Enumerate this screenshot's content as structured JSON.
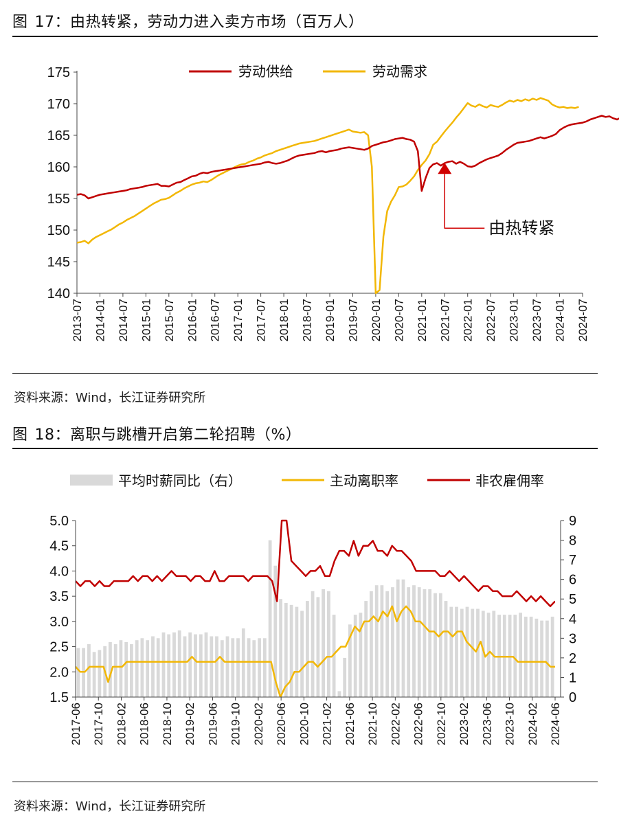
{
  "fig17": {
    "label": "图",
    "number": "17：",
    "title": "由热转紧，劳动力进入卖方市场（百万人）",
    "source": "资料来源：Wind，长江证券研究所",
    "legend": [
      "劳动供给",
      "劳动需求"
    ],
    "annotation": "由热转紧",
    "colors": {
      "supply": "#c00000",
      "demand": "#f2b705",
      "annotation": "#d00000"
    }
  },
  "fig18": {
    "label": "图",
    "number": "18：",
    "title": "离职与跳槽开启第二轮招聘（%）",
    "source": "资料来源：Wind，长江证券研究所",
    "legend": [
      "平均时薪同比（右）",
      "主动离职率",
      "非农雇佣率"
    ],
    "colors": {
      "wage": "#d9d9d9",
      "quits": "#f2b705",
      "hires": "#c00000"
    }
  },
  "chart_data": [
    {
      "type": "line",
      "title": "由热转紧，劳动力进入卖方市场（百万人）",
      "ylim": [
        140,
        175
      ],
      "yticks": [
        140,
        145,
        150,
        155,
        160,
        165,
        170,
        175
      ],
      "xticks": [
        "2013-07",
        "2014-01",
        "2014-07",
        "2015-01",
        "2015-07",
        "2016-01",
        "2016-07",
        "2017-01",
        "2017-07",
        "2018-01",
        "2018-07",
        "2019-01",
        "2019-07",
        "2020-01",
        "2020-07",
        "2021-01",
        "2021-07",
        "2022-01",
        "2022-07",
        "2023-01",
        "2023-07",
        "2024-01",
        "2024-07"
      ],
      "x_start": "2013-07",
      "series": [
        {
          "name": "劳动供给",
          "values": [
            155.6,
            155.7,
            155.5,
            155.0,
            155.2,
            155.4,
            155.6,
            155.7,
            155.8,
            155.9,
            156.0,
            156.1,
            156.2,
            156.3,
            156.5,
            156.6,
            156.7,
            156.8,
            157.0,
            157.1,
            157.2,
            157.3,
            157.0,
            157.0,
            156.9,
            157.2,
            157.5,
            157.6,
            157.9,
            158.2,
            158.5,
            158.6,
            158.9,
            159.1,
            159.0,
            159.2,
            159.3,
            159.4,
            159.5,
            159.6,
            159.7,
            159.8,
            159.9,
            160.0,
            160.1,
            160.2,
            160.3,
            160.4,
            160.5,
            160.7,
            160.8,
            160.6,
            160.5,
            160.6,
            160.8,
            161.0,
            161.3,
            161.6,
            161.8,
            161.9,
            162.0,
            162.1,
            162.2,
            162.4,
            162.5,
            162.3,
            162.5,
            162.6,
            162.7,
            162.9,
            163.0,
            163.1,
            163.0,
            162.9,
            162.8,
            162.7,
            162.9,
            163.3,
            163.5,
            163.7,
            163.9,
            164.0,
            164.2,
            164.4,
            164.5,
            164.6,
            164.4,
            164.3,
            164.0,
            162.5,
            156.2,
            158.2,
            159.8,
            160.4,
            160.6,
            160.2,
            160.6,
            160.8,
            160.9,
            160.5,
            160.8,
            160.5,
            160.1,
            160.0,
            160.2,
            160.6,
            160.9,
            161.2,
            161.4,
            161.6,
            161.8,
            162.2,
            162.7,
            163.1,
            163.5,
            163.8,
            163.9,
            164.0,
            164.1,
            164.3,
            164.5,
            164.7,
            164.5,
            164.7,
            164.9,
            165.2,
            165.8,
            166.2,
            166.5,
            166.7,
            166.8,
            166.9,
            167.0,
            167.2,
            167.5,
            167.7,
            167.9,
            168.1,
            167.9,
            168.0,
            167.7,
            167.5,
            167.8,
            167.9,
            168.1,
            168.0,
            168.2,
            168.4
          ]
        },
        {
          "name": "劳动需求",
          "values": [
            148.0,
            148.1,
            148.3,
            147.9,
            148.5,
            148.9,
            149.2,
            149.5,
            149.8,
            150.1,
            150.5,
            150.9,
            151.2,
            151.6,
            151.9,
            152.2,
            152.6,
            153.0,
            153.4,
            153.8,
            154.2,
            154.5,
            154.8,
            154.9,
            155.1,
            155.5,
            155.9,
            156.2,
            156.6,
            156.9,
            157.2,
            157.4,
            157.5,
            157.7,
            157.6,
            157.9,
            158.3,
            158.7,
            159.0,
            159.3,
            159.6,
            159.9,
            160.2,
            160.4,
            160.5,
            160.8,
            161.0,
            161.3,
            161.5,
            161.8,
            162.0,
            162.2,
            162.5,
            162.7,
            162.9,
            163.1,
            163.3,
            163.5,
            163.7,
            163.8,
            163.9,
            164.0,
            164.1,
            164.3,
            164.5,
            164.7,
            164.9,
            165.1,
            165.3,
            165.5,
            165.7,
            165.9,
            165.6,
            165.5,
            165.4,
            165.5,
            165.0,
            160.0,
            140.0,
            140.5,
            149.0,
            153.0,
            154.5,
            155.5,
            156.8,
            156.9,
            157.2,
            157.8,
            158.5,
            159.5,
            160.3,
            161.0,
            162.0,
            163.5,
            164.0,
            164.8,
            165.6,
            166.3,
            167.0,
            167.8,
            168.5,
            169.3,
            170.1,
            169.7,
            169.5,
            169.9,
            169.6,
            169.4,
            169.8,
            169.6,
            169.5,
            169.8,
            170.2,
            170.5,
            170.3,
            170.6,
            170.4,
            170.7,
            170.5,
            170.8,
            170.6,
            170.9,
            170.7,
            170.5,
            169.9,
            169.6,
            169.4,
            169.5,
            169.3,
            169.4,
            169.3,
            169.5
          ]
        }
      ],
      "annotations": [
        {
          "text": "由热转紧",
          "x": "2021-07",
          "y": 161.5
        }
      ]
    },
    {
      "type": "bar+line",
      "title": "离职与跳槽开启第二轮招聘（%）",
      "ylim_left": [
        1.5,
        5.0
      ],
      "yticks_left": [
        1.5,
        2.0,
        2.5,
        3.0,
        3.5,
        4.0,
        4.5,
        5.0
      ],
      "ylim_right": [
        0,
        9
      ],
      "yticks_right": [
        0,
        1,
        2,
        3,
        4,
        5,
        6,
        7,
        8,
        9
      ],
      "xticks": [
        "2017-06",
        "2017-10",
        "2018-02",
        "2018-06",
        "2018-10",
        "2019-02",
        "2019-06",
        "2019-10",
        "2020-02",
        "2020-06",
        "2020-10",
        "2021-02",
        "2021-06",
        "2021-10",
        "2022-02",
        "2022-06",
        "2022-10",
        "2023-02",
        "2023-06",
        "2023-10",
        "2024-02",
        "2024-06"
      ],
      "x_start": "2017-06",
      "series": [
        {
          "name": "平均时薪同比（右）",
          "axis": "right",
          "style": "bar",
          "values": [
            2.5,
            2.5,
            2.7,
            2.3,
            2.4,
            2.6,
            2.8,
            2.7,
            2.9,
            2.8,
            2.7,
            2.9,
            3.0,
            2.9,
            3.1,
            3.0,
            3.3,
            3.2,
            3.3,
            3.4,
            3.1,
            3.3,
            3.2,
            3.2,
            3.3,
            3.1,
            3.1,
            2.9,
            3.1,
            3.0,
            3.0,
            3.5,
            3.0,
            2.9,
            3.0,
            3.0,
            8.0,
            6.7,
            5.0,
            4.8,
            4.7,
            4.6,
            4.4,
            4.9,
            5.4,
            5.1,
            5.5,
            5.4,
            4.2,
            0.3,
            2.0,
            3.7,
            4.2,
            4.3,
            4.9,
            5.4,
            5.7,
            5.7,
            5.4,
            5.6,
            6.0,
            6.0,
            5.6,
            5.7,
            5.6,
            5.5,
            5.5,
            5.3,
            5.3,
            4.9,
            4.6,
            4.6,
            4.5,
            4.6,
            4.5,
            4.5,
            4.4,
            4.3,
            4.4,
            4.2,
            4.2,
            4.2,
            4.2,
            4.3,
            4.1,
            4.1,
            4.0,
            3.9,
            3.9,
            4.1
          ]
        },
        {
          "name": "主动离职率",
          "axis": "left",
          "style": "line",
          "values": [
            2.1,
            2.0,
            2.0,
            2.1,
            2.1,
            2.1,
            2.1,
            1.8,
            2.1,
            2.1,
            2.1,
            2.2,
            2.2,
            2.2,
            2.2,
            2.2,
            2.2,
            2.2,
            2.2,
            2.2,
            2.2,
            2.2,
            2.2,
            2.2,
            2.2,
            2.3,
            2.2,
            2.2,
            2.2,
            2.2,
            2.2,
            2.3,
            2.2,
            2.2,
            2.2,
            2.2,
            2.2,
            2.2,
            2.2,
            2.2,
            2.2,
            2.2,
            2.2,
            1.8,
            1.5,
            1.7,
            1.8,
            2.0,
            2.0,
            2.1,
            2.2,
            2.2,
            2.1,
            2.2,
            2.3,
            2.3,
            2.4,
            2.5,
            2.5,
            2.7,
            2.9,
            2.8,
            3.0,
            3.0,
            3.1,
            3.0,
            3.2,
            3.1,
            3.3,
            3.0,
            3.2,
            3.3,
            3.2,
            3.0,
            3.0,
            2.9,
            2.8,
            2.8,
            2.7,
            2.8,
            2.8,
            2.7,
            2.8,
            2.8,
            2.6,
            2.5,
            2.4,
            2.6,
            2.3,
            2.4,
            2.3,
            2.3,
            2.3,
            2.3,
            2.3,
            2.2,
            2.2,
            2.2,
            2.2,
            2.2,
            2.2,
            2.2,
            2.1,
            2.1
          ]
        },
        {
          "name": "非农雇佣率",
          "axis": "left",
          "style": "line",
          "values": [
            3.8,
            3.7,
            3.8,
            3.8,
            3.7,
            3.8,
            3.7,
            3.7,
            3.8,
            3.8,
            3.8,
            3.8,
            3.9,
            3.8,
            3.9,
            3.9,
            3.8,
            3.9,
            3.8,
            3.9,
            4.0,
            3.9,
            3.9,
            3.9,
            3.8,
            3.9,
            3.9,
            3.8,
            3.8,
            4.0,
            3.8,
            3.8,
            3.9,
            3.9,
            3.9,
            3.9,
            3.8,
            3.9,
            3.9,
            3.9,
            3.9,
            3.8,
            3.4,
            5.0,
            5.0,
            4.2,
            4.1,
            4.0,
            3.9,
            4.0,
            4.0,
            4.1,
            3.9,
            3.9,
            4.2,
            4.4,
            4.4,
            4.3,
            4.6,
            4.3,
            4.5,
            4.5,
            4.6,
            4.4,
            4.4,
            4.3,
            4.5,
            4.4,
            4.4,
            4.3,
            4.2,
            4.0,
            4.0,
            4.0,
            4.0,
            4.0,
            3.9,
            3.9,
            4.0,
            3.9,
            3.8,
            3.9,
            3.8,
            3.7,
            3.6,
            3.7,
            3.7,
            3.6,
            3.6,
            3.5,
            3.5,
            3.5,
            3.6,
            3.5,
            3.4,
            3.5,
            3.4,
            3.5,
            3.4,
            3.3,
            3.4
          ]
        }
      ]
    }
  ]
}
